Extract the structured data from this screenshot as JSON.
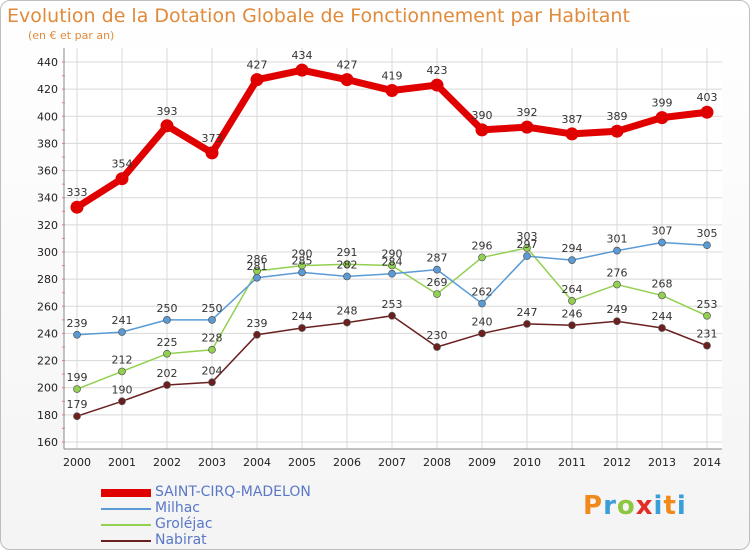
{
  "title": "Evolution de la Dotation Globale de Fonctionnement par Habitant",
  "subtitle": "(en € et par an)",
  "logo": {
    "p": "P",
    "r": "r",
    "o": "o",
    "x": "x",
    "i": "i",
    "t": "t",
    "i2": "i"
  },
  "chart_data": {
    "type": "line",
    "x": [
      "2000",
      "2001",
      "2002",
      "2003",
      "2004",
      "2005",
      "2006",
      "2007",
      "2008",
      "2009",
      "2010",
      "2011",
      "2012",
      "2013",
      "2014"
    ],
    "ylim": [
      160,
      440
    ],
    "yticks": [
      160,
      180,
      200,
      220,
      240,
      260,
      280,
      300,
      320,
      340,
      360,
      380,
      400,
      420,
      440
    ],
    "grid": true,
    "legend_position": "bottom-left",
    "series": [
      {
        "name": "SAINT-CIRQ-MADELON",
        "color": "#e00000",
        "values": [
          333,
          354,
          393,
          373,
          427,
          434,
          427,
          419,
          423,
          390,
          392,
          387,
          389,
          399,
          403
        ]
      },
      {
        "name": "Milhac",
        "color": "#5a9bd5",
        "values": [
          239,
          241,
          250,
          250,
          281,
          285,
          282,
          284,
          287,
          262,
          297,
          294,
          301,
          307,
          305
        ]
      },
      {
        "name": "Groléjac",
        "color": "#92d050",
        "values": [
          199,
          212,
          225,
          228,
          286,
          290,
          291,
          290,
          269,
          296,
          303,
          264,
          276,
          268,
          253
        ]
      },
      {
        "name": "Nabirat",
        "color": "#6b1f1f",
        "values": [
          179,
          190,
          202,
          204,
          239,
          244,
          248,
          253,
          230,
          240,
          247,
          246,
          249,
          244,
          231
        ]
      }
    ]
  }
}
